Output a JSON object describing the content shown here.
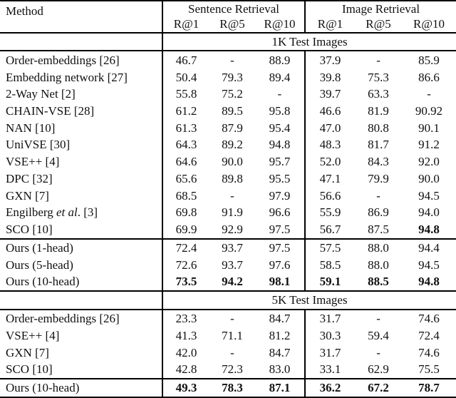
{
  "table": {
    "header": {
      "method": "Method",
      "groups": [
        {
          "label": "Sentence Retrieval",
          "subcols": [
            "R@1",
            "R@5",
            "R@10"
          ]
        },
        {
          "label": "Image Retrieval",
          "subcols": [
            "R@1",
            "R@5",
            "R@10"
          ]
        }
      ]
    },
    "sections": [
      {
        "title": "1K Test Images",
        "row_groups": [
          {
            "rows": [
              {
                "method": "Order-embeddings [26]",
                "values": [
                  "46.7",
                  "-",
                  "88.9",
                  "37.9",
                  "-",
                  "85.9"
                ]
              },
              {
                "method": "Embedding network [27]",
                "values": [
                  "50.4",
                  "79.3",
                  "89.4",
                  "39.8",
                  "75.3",
                  "86.6"
                ]
              },
              {
                "method": "2-Way Net [2]",
                "values": [
                  "55.8",
                  "75.2",
                  "-",
                  "39.7",
                  "63.3",
                  "-"
                ]
              },
              {
                "method": "CHAIN-VSE [28]",
                "values": [
                  "61.2",
                  "89.5",
                  "95.8",
                  "46.6",
                  "81.9",
                  "90.92"
                ]
              },
              {
                "method": "NAN [10]",
                "values": [
                  "61.3",
                  "87.9",
                  "95.4",
                  "47.0",
                  "80.8",
                  "90.1"
                ]
              },
              {
                "method": "UniVSE [30]",
                "values": [
                  "64.3",
                  "89.2",
                  "94.8",
                  "48.3",
                  "81.7",
                  "91.2"
                ]
              },
              {
                "method": "VSE++ [4]",
                "values": [
                  "64.6",
                  "90.0",
                  "95.7",
                  "52.0",
                  "84.3",
                  "92.0"
                ]
              },
              {
                "method": "DPC [32]",
                "values": [
                  "65.6",
                  "89.8",
                  "95.5",
                  "47.1",
                  "79.9",
                  "90.0"
                ]
              },
              {
                "method": "GXN [7]",
                "values": [
                  "68.5",
                  "-",
                  "97.9",
                  "56.6",
                  "-",
                  "94.5"
                ]
              },
              {
                "method": "Engilberg et al. [3]",
                "method_parts": {
                  "pre": "Engilberg ",
                  "italic": "et al",
                  "post": ". [3]"
                },
                "values": [
                  "69.8",
                  "91.9",
                  "96.6",
                  "55.9",
                  "86.9",
                  "94.0"
                ]
              },
              {
                "method": "SCO [10]",
                "values": [
                  "69.9",
                  "92.9",
                  "97.5",
                  "56.7",
                  "87.5",
                  "94.8"
                ],
                "bold": [
                  0,
                  0,
                  0,
                  0,
                  0,
                  1
                ]
              }
            ]
          },
          {
            "rows": [
              {
                "method": "Ours (1-head)",
                "values": [
                  "72.4",
                  "93.7",
                  "97.5",
                  "57.5",
                  "88.0",
                  "94.4"
                ]
              },
              {
                "method": "Ours (5-head)",
                "values": [
                  "72.6",
                  "93.7",
                  "97.6",
                  "58.5",
                  "88.0",
                  "94.5"
                ]
              },
              {
                "method": "Ours (10-head)",
                "values": [
                  "73.5",
                  "94.2",
                  "98.1",
                  "59.1",
                  "88.5",
                  "94.8"
                ],
                "bold": [
                  1,
                  1,
                  1,
                  1,
                  1,
                  1
                ]
              }
            ]
          }
        ]
      },
      {
        "title": "5K Test Images",
        "row_groups": [
          {
            "rows": [
              {
                "method": "Order-embeddings [26]",
                "values": [
                  "23.3",
                  "-",
                  "84.7",
                  "31.7",
                  "-",
                  "74.6"
                ]
              },
              {
                "method": "VSE++ [4]",
                "values": [
                  "41.3",
                  "71.1",
                  "81.2",
                  "30.3",
                  "59.4",
                  "72.4"
                ]
              },
              {
                "method": "GXN [7]",
                "values": [
                  "42.0",
                  "-",
                  "84.7",
                  "31.7",
                  "-",
                  "74.6"
                ]
              },
              {
                "method": "SCO [10]",
                "values": [
                  "42.8",
                  "72.3",
                  "83.0",
                  "33.1",
                  "62.9",
                  "75.5"
                ]
              }
            ]
          },
          {
            "rows": [
              {
                "method": "Ours (10-head)",
                "values": [
                  "49.3",
                  "78.3",
                  "87.1",
                  "36.2",
                  "67.2",
                  "78.7"
                ],
                "bold": [
                  1,
                  1,
                  1,
                  1,
                  1,
                  1
                ]
              }
            ]
          }
        ]
      }
    ]
  }
}
